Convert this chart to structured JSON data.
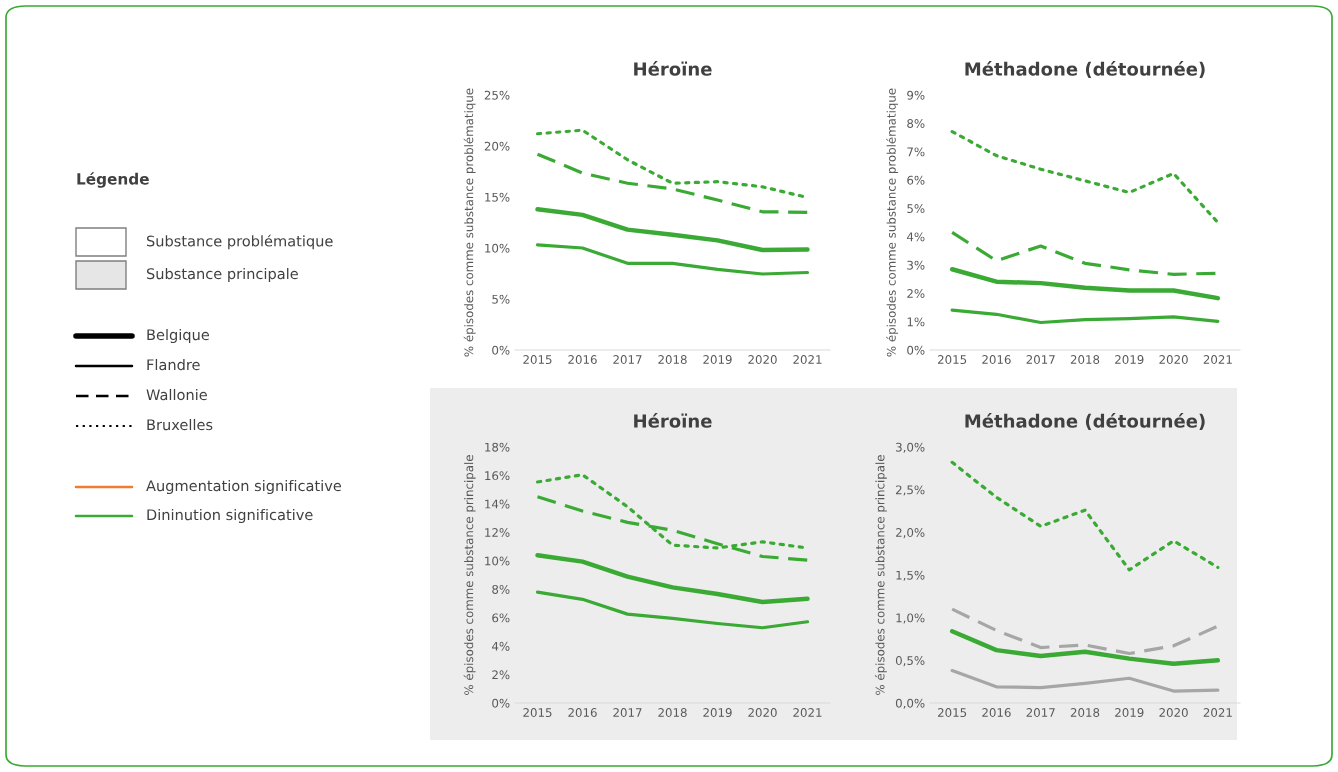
{
  "chart_data": [
    {
      "type": "other",
      "title": "Légende",
      "annotations": [
        "Substance problématique",
        "Substance principale",
        "Belgique",
        "Flandre",
        "Wallonie",
        "Bruxelles",
        "Augmentation significative",
        "Dininution significative"
      ]
    },
    {
      "type": "line",
      "title": "Héroïne",
      "ylabel": "% épisodes comme substance problématique",
      "categories": [
        "2015",
        "2016",
        "2017",
        "2018",
        "2019",
        "2020",
        "2021"
      ],
      "ylim": [
        0,
        25
      ],
      "yticks": [
        {
          "value": 0,
          "label": "0%"
        },
        {
          "value": 5,
          "label": "5%"
        },
        {
          "value": 10,
          "label": "10%"
        },
        {
          "value": 15,
          "label": "15%"
        },
        {
          "value": 20,
          "label": "20%"
        },
        {
          "value": 25,
          "label": "25%"
        }
      ],
      "grid": false,
      "legend": false,
      "series": [
        {
          "color": "#3aaa35",
          "line_style": "solid",
          "values": [
            13.8,
            13.25,
            11.8,
            11.3,
            10.75,
            9.8,
            9.85
          ]
        },
        {
          "color": "#3aaa35",
          "line_style": "solid",
          "values": [
            10.3,
            10.0,
            8.5,
            8.5,
            7.9,
            7.45,
            7.6
          ]
        },
        {
          "color": "#3aaa35",
          "line_style": "dashed",
          "values": [
            19.2,
            17.35,
            16.35,
            15.8,
            14.7,
            13.55,
            13.5
          ]
        },
        {
          "color": "#3aaa35",
          "line_style": "dotted",
          "values": [
            21.2,
            21.55,
            18.65,
            16.35,
            16.5,
            16.0,
            14.95
          ]
        }
      ]
    },
    {
      "type": "line",
      "title": "Méthadone (détournée)",
      "ylabel": "% épisodes comme substance problématique",
      "categories": [
        "2015",
        "2016",
        "2017",
        "2018",
        "2019",
        "2020",
        "2021"
      ],
      "ylim": [
        0,
        9
      ],
      "yticks": [
        {
          "value": 0,
          "label": "0%"
        },
        {
          "value": 1,
          "label": "1%"
        },
        {
          "value": 2,
          "label": "2%"
        },
        {
          "value": 3,
          "label": "3%"
        },
        {
          "value": 4,
          "label": "4%"
        },
        {
          "value": 5,
          "label": "5%"
        },
        {
          "value": 6,
          "label": "6%"
        },
        {
          "value": 7,
          "label": "7%"
        },
        {
          "value": 8,
          "label": "8%"
        },
        {
          "value": 9,
          "label": "9%"
        }
      ],
      "grid": false,
      "legend": false,
      "series": [
        {
          "color": "#3aaa35",
          "line_style": "solid",
          "values": [
            2.85,
            2.41,
            2.36,
            2.2,
            2.1,
            2.1,
            1.83
          ]
        },
        {
          "color": "#3aaa35",
          "line_style": "solid",
          "values": [
            1.41,
            1.26,
            0.97,
            1.07,
            1.11,
            1.17,
            1.01
          ]
        },
        {
          "color": "#3aaa35",
          "line_style": "dashed",
          "values": [
            4.15,
            3.15,
            3.67,
            3.06,
            2.83,
            2.67,
            2.71
          ]
        },
        {
          "color": "#3aaa35",
          "line_style": "dotted",
          "values": [
            7.71,
            6.86,
            6.38,
            5.97,
            5.56,
            6.23,
            4.5
          ]
        }
      ]
    },
    {
      "type": "line",
      "title": "Héroïne",
      "ylabel": "% épisodes comme substance principale",
      "categories": [
        "2015",
        "2016",
        "2017",
        "2018",
        "2019",
        "2020",
        "2021"
      ],
      "ylim": [
        0,
        18
      ],
      "yticks": [
        {
          "value": 0,
          "label": "0%"
        },
        {
          "value": 2,
          "label": "2%"
        },
        {
          "value": 4,
          "label": "4%"
        },
        {
          "value": 6,
          "label": "6%"
        },
        {
          "value": 8,
          "label": "8%"
        },
        {
          "value": 10,
          "label": "10%"
        },
        {
          "value": 12,
          "label": "12%"
        },
        {
          "value": 14,
          "label": "14%"
        },
        {
          "value": 16,
          "label": "16%"
        },
        {
          "value": 18,
          "label": "18%"
        }
      ],
      "grid": false,
      "legend": false,
      "series": [
        {
          "color": "#3aaa35",
          "line_style": "solid",
          "values": [
            10.39,
            9.94,
            8.88,
            8.13,
            7.66,
            7.1,
            7.33
          ]
        },
        {
          "color": "#3aaa35",
          "line_style": "solid",
          "values": [
            7.8,
            7.29,
            6.25,
            5.95,
            5.59,
            5.29,
            5.71
          ]
        },
        {
          "color": "#3aaa35",
          "line_style": "dashed",
          "values": [
            14.5,
            13.5,
            12.7,
            12.15,
            11.2,
            10.3,
            10.05
          ]
        },
        {
          "color": "#3aaa35",
          "line_style": "dotted",
          "values": [
            15.54,
            16.05,
            13.8,
            11.1,
            10.9,
            11.33,
            10.9
          ]
        }
      ]
    },
    {
      "type": "line",
      "title": "Méthadone (détournée)",
      "ylabel": "% épisodes comme substance principale",
      "categories": [
        "2015",
        "2016",
        "2017",
        "2018",
        "2019",
        "2020",
        "2021"
      ],
      "ylim": [
        0,
        3
      ],
      "yticks": [
        {
          "value": 0,
          "label": "0,0%"
        },
        {
          "value": 0.5,
          "label": "0,5%"
        },
        {
          "value": 1,
          "label": "1,0%"
        },
        {
          "value": 1.5,
          "label": "1,5%"
        },
        {
          "value": 2,
          "label": "2,0%"
        },
        {
          "value": 2.5,
          "label": "2,5%"
        },
        {
          "value": 3,
          "label": "3,0%"
        }
      ],
      "grid": false,
      "legend": false,
      "series": [
        {
          "color": "#3aaa35",
          "line_style": "solid",
          "values": [
            0.84,
            0.62,
            0.55,
            0.6,
            0.52,
            0.46,
            0.5
          ]
        },
        {
          "color": "#a6a6a6",
          "line_style": "solid",
          "values": [
            0.38,
            0.19,
            0.18,
            0.23,
            0.29,
            0.14,
            0.15
          ]
        },
        {
          "color": "#a6a6a6",
          "line_style": "dashed",
          "values": [
            1.1,
            0.85,
            0.65,
            0.68,
            0.58,
            0.67,
            0.9
          ]
        },
        {
          "color": "#3aaa35",
          "line_style": "dotted",
          "values": [
            2.82,
            2.41,
            2.07,
            2.26,
            1.56,
            1.9,
            1.59
          ]
        }
      ]
    }
  ]
}
